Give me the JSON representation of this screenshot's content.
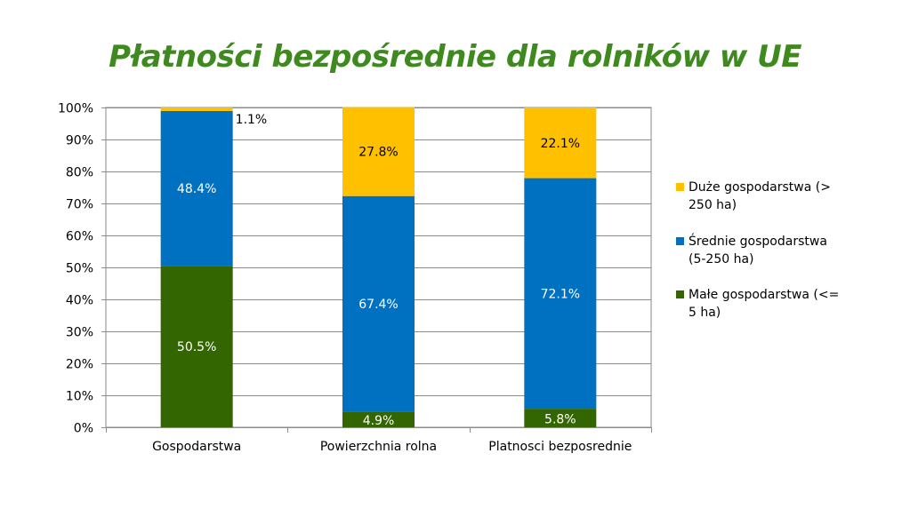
{
  "chart_data": {
    "type": "bar",
    "stacked": true,
    "title": "Płatności bezpośrednie dla rolników w UE",
    "categories": [
      "Gospodarstwa",
      "Powierzchnia rolna",
      "Platnosci bezposrednie"
    ],
    "series": [
      {
        "name": "Małe gospodarstwa (<= 5 ha)",
        "color": "#336600",
        "values": [
          50.5,
          4.9,
          5.8
        ],
        "labels": [
          "50.5%",
          "4.9%",
          "5.8%"
        ]
      },
      {
        "name": "Średnie gospodarstwa (5-250 ha)",
        "color": "#0070c0",
        "values": [
          48.4,
          67.4,
          72.1
        ],
        "labels": [
          "48.4%",
          "67.4%",
          "72.1%"
        ]
      },
      {
        "name": "Duże gospodarstwa (> 250 ha)",
        "color": "#ffc000",
        "values": [
          1.1,
          27.8,
          22.1
        ],
        "labels": [
          "1.1%",
          "27.8%",
          "22.1%"
        ]
      }
    ],
    "yticks": [
      "0%",
      "10%",
      "20%",
      "30%",
      "40%",
      "50%",
      "60%",
      "70%",
      "80%",
      "90%",
      "100%"
    ],
    "ylim": [
      0,
      100
    ],
    "grid": true,
    "legend_position": "right",
    "legend": [
      {
        "line1": "Duże gospodarstwa (>",
        "line2": "250 ha)",
        "color": "#ffc000"
      },
      {
        "line1": "Średnie gospodarstwa",
        "line2": "(5-250 ha)",
        "color": "#0070c0"
      },
      {
        "line1": "Małe gospodarstwa (<=",
        "line2": "5 ha)",
        "color": "#336600"
      }
    ]
  }
}
